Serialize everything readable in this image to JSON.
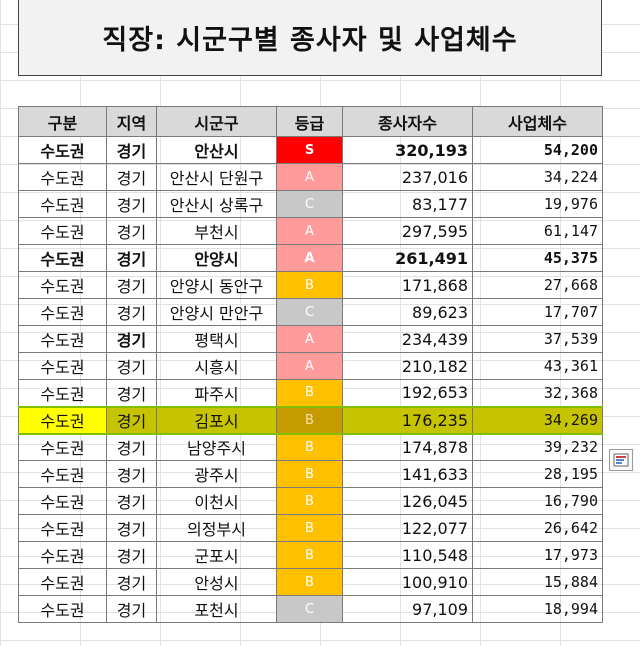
{
  "title": "직장: 시군구별 종사자 및 사업체수",
  "headers": [
    "구분",
    "지역",
    "시군구",
    "등급",
    "종사자수",
    "사업체수"
  ],
  "rows": [
    {
      "region_group": "수도권",
      "province": "경기",
      "district": "안산시",
      "grade": "S",
      "workers": "320,193",
      "businesses": "54,200"
    },
    {
      "region_group": "수도권",
      "province": "경기",
      "district": "안산시 단원구",
      "grade": "A",
      "workers": "237,016",
      "businesses": "34,224"
    },
    {
      "region_group": "수도권",
      "province": "경기",
      "district": "안산시 상록구",
      "grade": "C",
      "workers": "83,177",
      "businesses": "19,976"
    },
    {
      "region_group": "수도권",
      "province": "경기",
      "district": "부천시",
      "grade": "A",
      "workers": "297,595",
      "businesses": "61,147"
    },
    {
      "region_group": "수도권",
      "province": "경기",
      "district": "안양시",
      "grade": "A",
      "workers": "261,491",
      "businesses": "45,375"
    },
    {
      "region_group": "수도권",
      "province": "경기",
      "district": "안양시 동안구",
      "grade": "B",
      "workers": "171,868",
      "businesses": "27,668"
    },
    {
      "region_group": "수도권",
      "province": "경기",
      "district": "안양시 만안구",
      "grade": "C",
      "workers": "89,623",
      "businesses": "17,707"
    },
    {
      "region_group": "수도권",
      "province": "경기",
      "district": "평택시",
      "grade": "A",
      "workers": "234,439",
      "businesses": "37,539"
    },
    {
      "region_group": "수도권",
      "province": "경기",
      "district": "시흥시",
      "grade": "A",
      "workers": "210,182",
      "businesses": "43,361"
    },
    {
      "region_group": "수도권",
      "province": "경기",
      "district": "파주시",
      "grade": "B",
      "workers": "192,653",
      "businesses": "32,368"
    },
    {
      "region_group": "수도권",
      "province": "경기",
      "district": "김포시",
      "grade": "B",
      "workers": "176,235",
      "businesses": "34,269"
    },
    {
      "region_group": "수도권",
      "province": "경기",
      "district": "남양주시",
      "grade": "B",
      "workers": "174,878",
      "businesses": "39,232"
    },
    {
      "region_group": "수도권",
      "province": "경기",
      "district": "광주시",
      "grade": "B",
      "workers": "141,633",
      "businesses": "28,195"
    },
    {
      "region_group": "수도권",
      "province": "경기",
      "district": "이천시",
      "grade": "B",
      "workers": "126,045",
      "businesses": "16,790"
    },
    {
      "region_group": "수도권",
      "province": "경기",
      "district": "의정부시",
      "grade": "B",
      "workers": "122,077",
      "businesses": "26,642"
    },
    {
      "region_group": "수도권",
      "province": "경기",
      "district": "군포시",
      "grade": "B",
      "workers": "110,548",
      "businesses": "17,973"
    },
    {
      "region_group": "수도권",
      "province": "경기",
      "district": "안성시",
      "grade": "B",
      "workers": "100,910",
      "businesses": "15,884"
    },
    {
      "region_group": "수도권",
      "province": "경기",
      "district": "포천시",
      "grade": "C",
      "workers": "97,109",
      "businesses": "18,994"
    }
  ],
  "grade_colors": {
    "S": "#ff0000",
    "A": "#ff9b9b",
    "B": "#ffc000",
    "C": "#c8c8c8"
  },
  "selected_row_index": 10,
  "quick_analysis_icon": "quick-analysis-icon"
}
